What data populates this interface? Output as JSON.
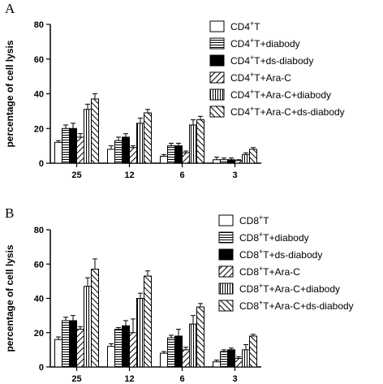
{
  "chart_data": [
    {
      "type": "bar",
      "panel_label": "A",
      "ylabel": "percentage of cell lysis",
      "ylim": [
        0,
        80
      ],
      "yticks": [
        0,
        20,
        40,
        60,
        80
      ],
      "categories": [
        "25",
        "12",
        "6",
        "3"
      ],
      "legend_position": "top-right",
      "series": [
        {
          "name": "CD4",
          "name_sup": "+",
          "name_rest": "T",
          "pattern": "white",
          "values": [
            12,
            8,
            4,
            2
          ],
          "errors": [
            1,
            2,
            1,
            1.5
          ]
        },
        {
          "name": "CD4",
          "name_sup": "+",
          "name_rest": "T+diabody",
          "pattern": "hlines",
          "values": [
            20,
            13,
            10,
            2
          ],
          "errors": [
            2,
            2,
            1.5,
            1
          ]
        },
        {
          "name": "CD4",
          "name_sup": "+",
          "name_rest": "T+ds-diabody",
          "pattern": "black",
          "values": [
            20,
            15,
            10,
            2
          ],
          "errors": [
            3,
            2,
            1.5,
            1
          ]
        },
        {
          "name": "CD4",
          "name_sup": "+",
          "name_rest": "T+Ara-C",
          "pattern": "diag",
          "values": [
            15,
            9,
            6,
            1.5
          ],
          "errors": [
            2,
            1,
            1,
            0.5
          ]
        },
        {
          "name": "CD4",
          "name_sup": "+",
          "name_rest": "T+Ara-C+diabody",
          "pattern": "vlines",
          "values": [
            31,
            23,
            22,
            5
          ],
          "errors": [
            3,
            3,
            3,
            1
          ]
        },
        {
          "name": "CD4",
          "name_sup": "+",
          "name_rest": "T+Ara-C+ds-diabody",
          "pattern": "diag2",
          "values": [
            37,
            29,
            25,
            8
          ],
          "errors": [
            3,
            2,
            2,
            1
          ]
        }
      ]
    },
    {
      "type": "bar",
      "panel_label": "B",
      "ylabel": "percentage of cell lysis",
      "ylim": [
        0,
        80
      ],
      "yticks": [
        0,
        20,
        40,
        60,
        80
      ],
      "categories": [
        "25",
        "12",
        "6",
        "3"
      ],
      "legend_position": "top-right",
      "series": [
        {
          "name": "CD8",
          "name_sup": "+",
          "name_rest": "T",
          "pattern": "white",
          "values": [
            16,
            12,
            8,
            3
          ],
          "errors": [
            1.5,
            1.5,
            1,
            1
          ]
        },
        {
          "name": "CD8",
          "name_sup": "+",
          "name_rest": "T+diabody",
          "pattern": "hlines",
          "values": [
            27,
            22,
            17,
            9
          ],
          "errors": [
            2,
            1,
            1.5,
            1
          ]
        },
        {
          "name": "CD8",
          "name_sup": "+",
          "name_rest": "T+ds-diabody",
          "pattern": "black",
          "values": [
            27,
            24,
            18,
            10
          ],
          "errors": [
            3,
            3,
            4,
            1
          ]
        },
        {
          "name": "CD8",
          "name_sup": "+",
          "name_rest": "T+Ara-C",
          "pattern": "diag",
          "values": [
            22,
            20,
            10,
            5
          ],
          "errors": [
            1.5,
            8,
            1.5,
            1
          ]
        },
        {
          "name": "CD8",
          "name_sup": "+",
          "name_rest": "T+Ara-C+diabody",
          "pattern": "vlines",
          "values": [
            47,
            40,
            25,
            10
          ],
          "errors": [
            5,
            3,
            5,
            3
          ]
        },
        {
          "name": "CD8",
          "name_sup": "+",
          "name_rest": "T+Ara-C+ds-diabody",
          "pattern": "diag2",
          "values": [
            57,
            53,
            35,
            18
          ],
          "errors": [
            6,
            3,
            2,
            1
          ]
        }
      ]
    }
  ]
}
